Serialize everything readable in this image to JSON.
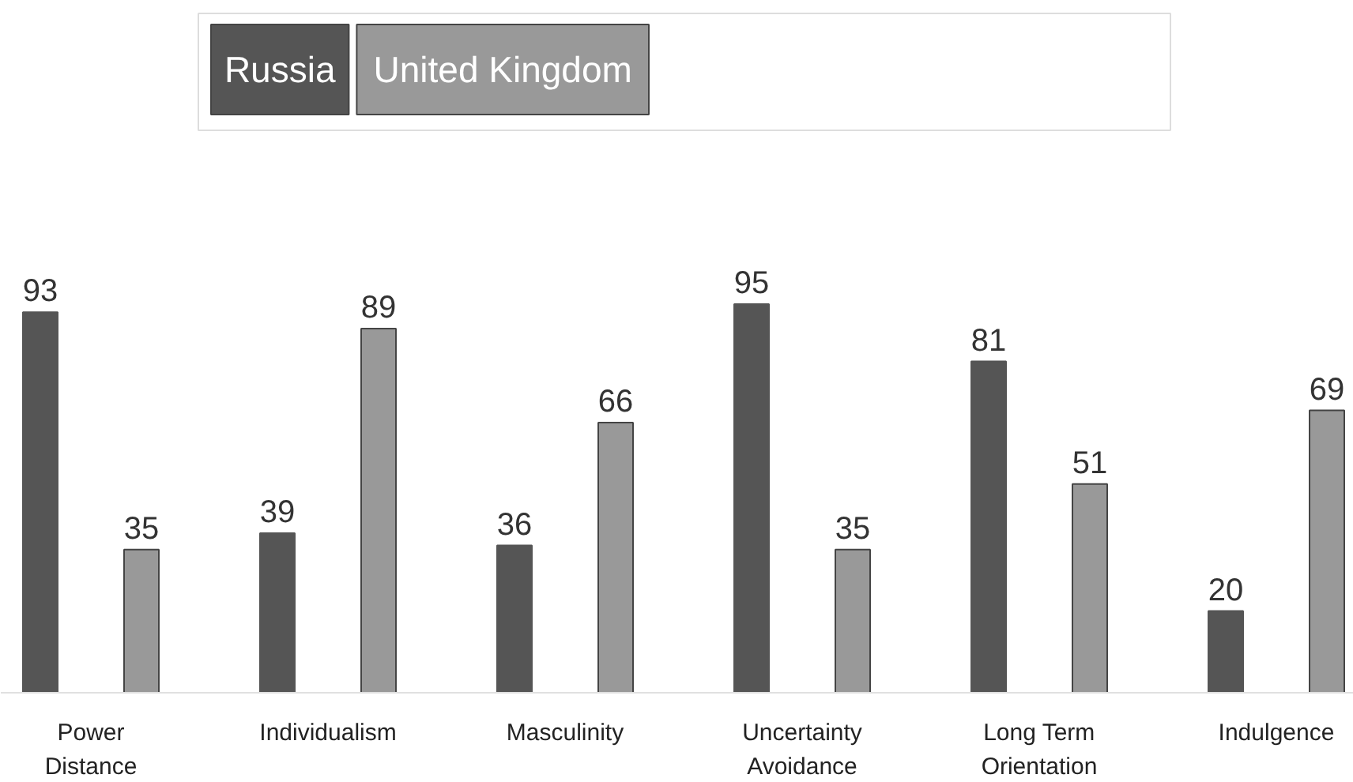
{
  "chart_data": {
    "type": "bar",
    "categories": [
      "Power Distance",
      "Individualism",
      "Masculinity",
      "Uncertainty Avoidance",
      "Long Term Orientation",
      "Indulgence"
    ],
    "series": [
      {
        "name": "Russia",
        "color": "#555555",
        "values": [
          93,
          39,
          36,
          95,
          81,
          20
        ]
      },
      {
        "name": "United Kingdom",
        "color": "#999999",
        "values": [
          35,
          89,
          66,
          35,
          51,
          69
        ]
      }
    ],
    "data_labels": true,
    "grid": false,
    "legend": "top"
  }
}
